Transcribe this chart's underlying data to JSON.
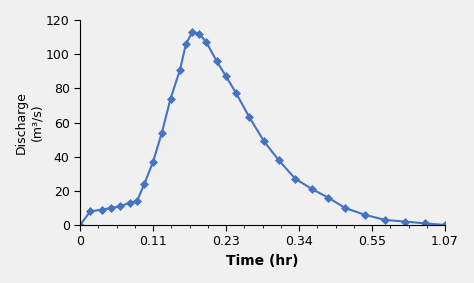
{
  "tick_positions": [
    0,
    1,
    2,
    3,
    4,
    5
  ],
  "tick_labels": [
    "0",
    "0.11",
    "0.23",
    "0.34",
    "0.55",
    "1.07"
  ],
  "x_data": [
    0,
    0.14,
    0.3,
    0.43,
    0.55,
    0.68,
    0.78,
    0.88,
    1.0,
    1.12,
    1.24,
    1.37,
    1.45,
    1.54,
    1.63,
    1.73,
    1.87,
    2.0,
    2.14,
    2.32,
    2.52,
    2.72,
    2.95,
    3.18,
    3.4,
    3.63,
    3.9,
    4.18,
    4.45,
    4.72,
    5.0
  ],
  "y_data": [
    0,
    8,
    9,
    10,
    11,
    13,
    14,
    24,
    37,
    54,
    74,
    91,
    106,
    113,
    112,
    107,
    96,
    87,
    77,
    63,
    49,
    38,
    27,
    21,
    16,
    10,
    6,
    3,
    2,
    1,
    0
  ],
  "line_color": "#4472C4",
  "marker": "D",
  "marker_size": 4,
  "marker_color": "#4472C4",
  "xlabel": "Time (hr)",
  "ylabel": "Discharge\n(m³/s)",
  "xlim": [
    0,
    5.0
  ],
  "ylim": [
    0,
    120
  ],
  "yticks": [
    0,
    20,
    40,
    60,
    80,
    100,
    120
  ],
  "xlabel_fontsize": 10,
  "ylabel_fontsize": 9,
  "tick_fontsize": 9,
  "background_color": "#f0f0f0",
  "line_width": 1.5
}
